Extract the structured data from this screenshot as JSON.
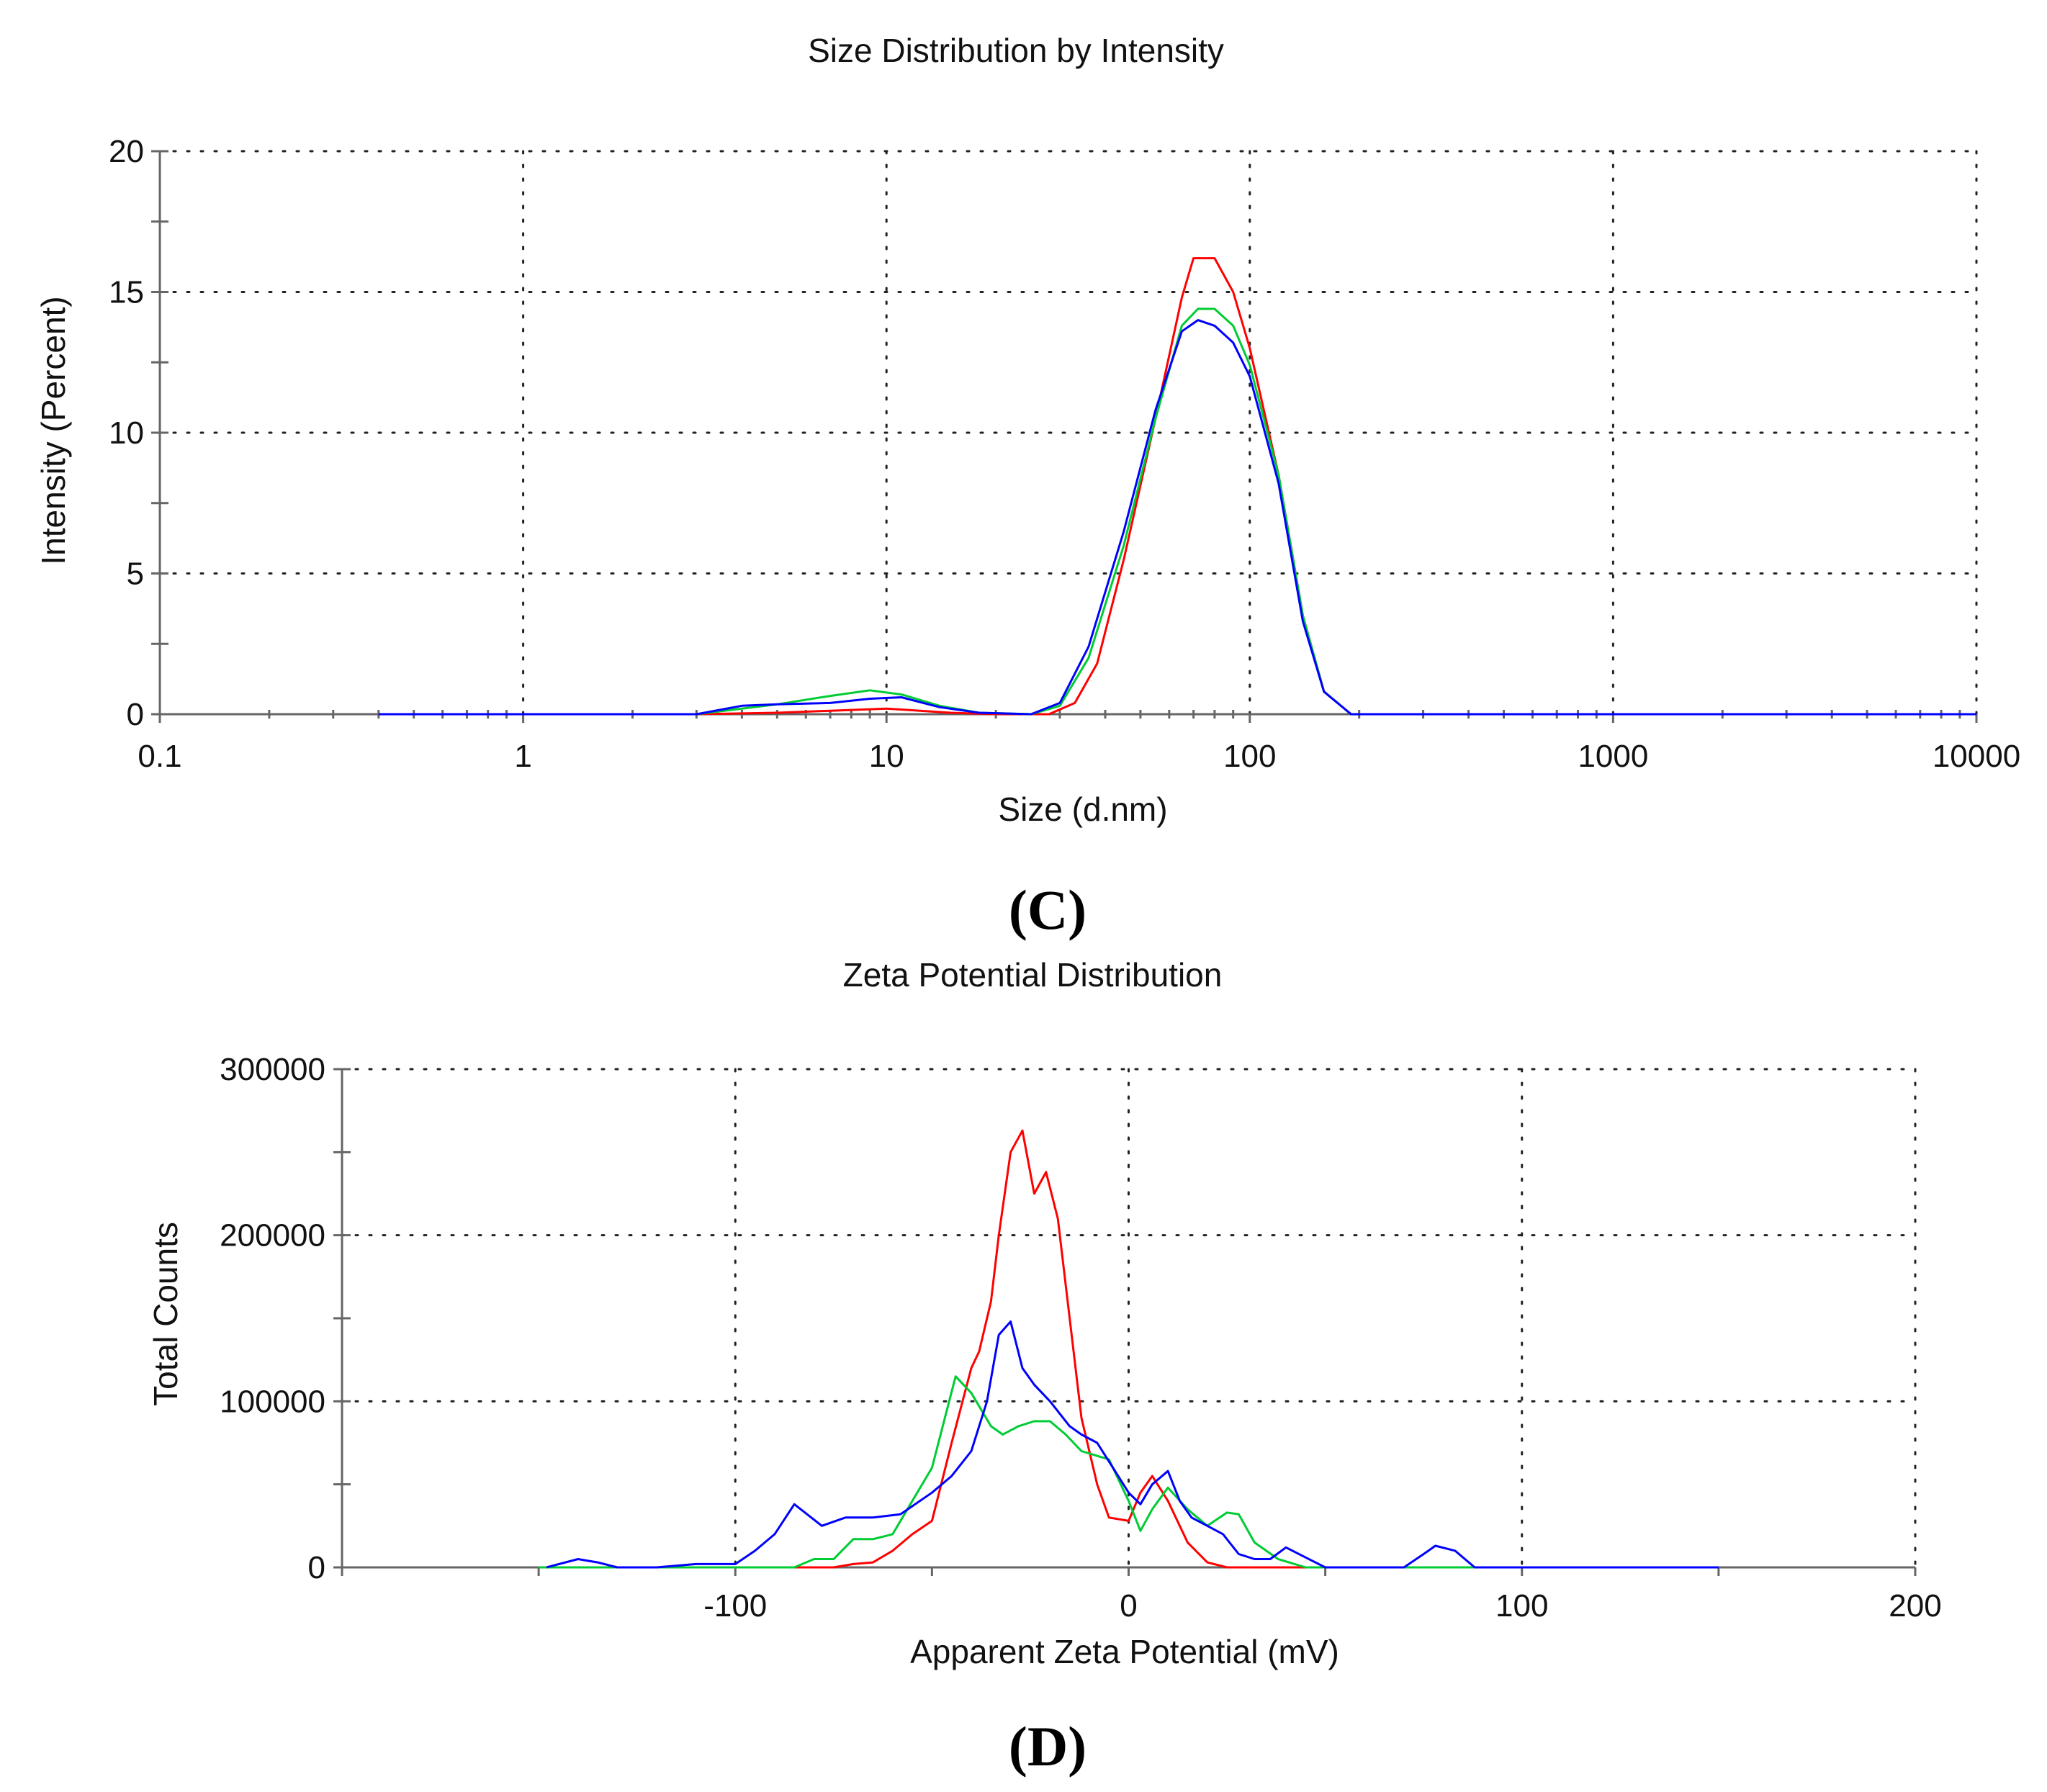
{
  "chart_data": [
    {
      "id": "size",
      "type": "line",
      "panel_label": "(C)",
      "title": "Size Distribution by Intensity",
      "xlabel": "Size (d.nm)",
      "ylabel": "Intensity (Percent)",
      "xscale": "log",
      "xlim": [
        0.1,
        10000
      ],
      "ylim": [
        0,
        20
      ],
      "xticks": [
        {
          "value": 0.1,
          "label": "0.1"
        },
        {
          "value": 1,
          "label": "1"
        },
        {
          "value": 10,
          "label": "10"
        },
        {
          "value": 100,
          "label": "100"
        },
        {
          "value": 1000,
          "label": "1000"
        },
        {
          "value": 10000,
          "label": "10000"
        }
      ],
      "yticks": [
        {
          "value": 0,
          "label": "0"
        },
        {
          "value": 5,
          "label": "5"
        },
        {
          "value": 10,
          "label": "10"
        },
        {
          "value": 15,
          "label": "15"
        },
        {
          "value": 20,
          "label": "20"
        }
      ],
      "grid": true,
      "series": [
        {
          "name": "red",
          "color": "#ff0000",
          "points": [
            [
              0.4,
              0
            ],
            [
              3,
              0
            ],
            [
              5,
              0.05
            ],
            [
              8,
              0.15
            ],
            [
              10,
              0.2
            ],
            [
              15,
              0.05
            ],
            [
              20,
              0
            ],
            [
              28,
              0
            ],
            [
              33,
              0.4
            ],
            [
              38,
              1.8
            ],
            [
              45,
              5.5
            ],
            [
              55,
              10.5
            ],
            [
              65,
              14.8
            ],
            [
              70,
              16.2
            ],
            [
              80,
              16.2
            ],
            [
              90,
              15
            ],
            [
              100,
              13
            ],
            [
              120,
              8.5
            ],
            [
              140,
              3.5
            ],
            [
              160,
              0.8
            ],
            [
              190,
              0
            ],
            [
              10000,
              0
            ]
          ]
        },
        {
          "name": "green",
          "color": "#00cc33",
          "points": [
            [
              0.4,
              0
            ],
            [
              3,
              0
            ],
            [
              4,
              0.2
            ],
            [
              5,
              0.35
            ],
            [
              7,
              0.65
            ],
            [
              9,
              0.85
            ],
            [
              11,
              0.7
            ],
            [
              14,
              0.3
            ],
            [
              18,
              0.05
            ],
            [
              25,
              0
            ],
            [
              30,
              0.3
            ],
            [
              36,
              2
            ],
            [
              45,
              6
            ],
            [
              55,
              10.5
            ],
            [
              65,
              13.8
            ],
            [
              72,
              14.4
            ],
            [
              80,
              14.4
            ],
            [
              90,
              13.8
            ],
            [
              100,
              12.4
            ],
            [
              120,
              8.5
            ],
            [
              140,
              3.5
            ],
            [
              160,
              0.8
            ],
            [
              190,
              0
            ],
            [
              10000,
              0
            ]
          ]
        },
        {
          "name": "blue",
          "color": "#0000ff",
          "points": [
            [
              0.4,
              0
            ],
            [
              3,
              0
            ],
            [
              4,
              0.3
            ],
            [
              5,
              0.35
            ],
            [
              7,
              0.4
            ],
            [
              9,
              0.55
            ],
            [
              11,
              0.6
            ],
            [
              14,
              0.25
            ],
            [
              18,
              0.05
            ],
            [
              25,
              0
            ],
            [
              30,
              0.4
            ],
            [
              36,
              2.4
            ],
            [
              45,
              6.5
            ],
            [
              55,
              10.8
            ],
            [
              65,
              13.6
            ],
            [
              72,
              14
            ],
            [
              80,
              13.8
            ],
            [
              90,
              13.2
            ],
            [
              100,
              12
            ],
            [
              120,
              8.2
            ],
            [
              140,
              3.3
            ],
            [
              160,
              0.8
            ],
            [
              190,
              0
            ],
            [
              10000,
              0
            ]
          ]
        }
      ]
    },
    {
      "id": "zeta",
      "type": "line",
      "panel_label": "(D)",
      "title": "Zeta Potential Distribution",
      "xlabel": "Apparent Zeta Potential (mV)",
      "ylabel": "Total Counts",
      "xscale": "linear",
      "xlim": [
        -200,
        200
      ],
      "ylim": [
        0,
        300000
      ],
      "xticks": [
        {
          "value": -100,
          "label": "-100"
        },
        {
          "value": 0,
          "label": "0"
        },
        {
          "value": 100,
          "label": "100"
        },
        {
          "value": 200,
          "label": "200"
        }
      ],
      "yticks": [
        {
          "value": 0,
          "label": "0"
        },
        {
          "value": 100000,
          "label": "100000"
        },
        {
          "value": 200000,
          "label": "200000"
        },
        {
          "value": 300000,
          "label": "300000"
        }
      ],
      "grid": true,
      "series": [
        {
          "name": "red",
          "color": "#ff0000",
          "points": [
            [
              -150,
              0
            ],
            [
              -90,
              0
            ],
            [
              -75,
              0
            ],
            [
              -70,
              2000
            ],
            [
              -65,
              3000
            ],
            [
              -60,
              10000
            ],
            [
              -55,
              20000
            ],
            [
              -50,
              28000
            ],
            [
              -45,
              75000
            ],
            [
              -40,
              120000
            ],
            [
              -38,
              130000
            ],
            [
              -35,
              160000
            ],
            [
              -33,
              200000
            ],
            [
              -30,
              250000
            ],
            [
              -27,
              263000
            ],
            [
              -24,
              225000
            ],
            [
              -21,
              238000
            ],
            [
              -18,
              210000
            ],
            [
              -15,
              150000
            ],
            [
              -12,
              90000
            ],
            [
              -8,
              50000
            ],
            [
              -5,
              30000
            ],
            [
              0,
              28000
            ],
            [
              3,
              45000
            ],
            [
              6,
              55000
            ],
            [
              10,
              40000
            ],
            [
              15,
              15000
            ],
            [
              20,
              3000
            ],
            [
              25,
              0
            ],
            [
              150,
              0
            ]
          ]
        },
        {
          "name": "green",
          "color": "#00cc33",
          "points": [
            [
              -150,
              0
            ],
            [
              -95,
              0
            ],
            [
              -85,
              0
            ],
            [
              -80,
              5000
            ],
            [
              -75,
              5000
            ],
            [
              -70,
              17000
            ],
            [
              -65,
              17000
            ],
            [
              -60,
              20000
            ],
            [
              -55,
              40000
            ],
            [
              -50,
              60000
            ],
            [
              -44,
              115000
            ],
            [
              -40,
              105000
            ],
            [
              -35,
              85000
            ],
            [
              -32,
              80000
            ],
            [
              -28,
              85000
            ],
            [
              -24,
              88000
            ],
            [
              -20,
              88000
            ],
            [
              -16,
              80000
            ],
            [
              -12,
              70000
            ],
            [
              -5,
              65000
            ],
            [
              0,
              40000
            ],
            [
              3,
              22000
            ],
            [
              6,
              35000
            ],
            [
              10,
              48000
            ],
            [
              15,
              35000
            ],
            [
              20,
              25000
            ],
            [
              25,
              33000
            ],
            [
              28,
              32000
            ],
            [
              32,
              15000
            ],
            [
              38,
              5000
            ],
            [
              45,
              0
            ],
            [
              150,
              0
            ]
          ]
        },
        {
          "name": "blue",
          "color": "#0000ff",
          "points": [
            [
              -148,
              0
            ],
            [
              -140,
              5000
            ],
            [
              -135,
              3000
            ],
            [
              -130,
              0
            ],
            [
              -120,
              0
            ],
            [
              -110,
              2000
            ],
            [
              -100,
              2000
            ],
            [
              -95,
              10000
            ],
            [
              -90,
              20000
            ],
            [
              -85,
              38000
            ],
            [
              -78,
              25000
            ],
            [
              -72,
              30000
            ],
            [
              -65,
              30000
            ],
            [
              -58,
              32000
            ],
            [
              -50,
              45000
            ],
            [
              -45,
              55000
            ],
            [
              -40,
              70000
            ],
            [
              -36,
              100000
            ],
            [
              -33,
              140000
            ],
            [
              -30,
              148000
            ],
            [
              -27,
              120000
            ],
            [
              -24,
              110000
            ],
            [
              -20,
              100000
            ],
            [
              -15,
              85000
            ],
            [
              -12,
              80000
            ],
            [
              -8,
              75000
            ],
            [
              -4,
              60000
            ],
            [
              0,
              45000
            ],
            [
              3,
              38000
            ],
            [
              6,
              50000
            ],
            [
              10,
              58000
            ],
            [
              13,
              40000
            ],
            [
              16,
              30000
            ],
            [
              20,
              25000
            ],
            [
              24,
              20000
            ],
            [
              28,
              8000
            ],
            [
              32,
              5000
            ],
            [
              36,
              5000
            ],
            [
              40,
              12000
            ],
            [
              45,
              6000
            ],
            [
              50,
              0
            ],
            [
              70,
              0
            ],
            [
              75,
              8000
            ],
            [
              78,
              13000
            ],
            [
              83,
              10000
            ],
            [
              88,
              0
            ],
            [
              150,
              0
            ]
          ]
        }
      ]
    }
  ]
}
